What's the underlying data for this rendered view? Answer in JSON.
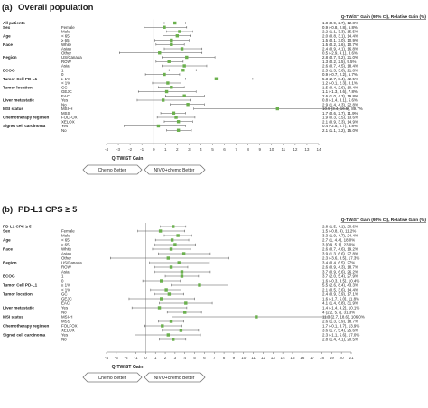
{
  "chart_data": [
    {
      "type": "scatter",
      "panel_label": "(a)",
      "title": "Overall population",
      "col_header": "Q-TWiST Gain (95% CI), Relative Gain (%)",
      "xlabel": "Q-TWiST Gain",
      "xlim": [
        -4,
        14
      ],
      "xticks": [
        -4,
        -3,
        -2,
        -1,
        0,
        1,
        2,
        3,
        4,
        5,
        6,
        7,
        8,
        9,
        10,
        11,
        12,
        13,
        14
      ],
      "button_left": "Chemo Better",
      "button_right": "NIVO+chemo Better",
      "rows": [
        {
          "group": "All patients",
          "sub": "-",
          "est": 1.8,
          "lo": 0.9,
          "hi": 2.7,
          "text": "1.8 (0.9, 2.7), 12.8%"
        },
        {
          "group": "Sex",
          "sub": "Female",
          "est": 0.9,
          "lo": -0.8,
          "hi": 2.8,
          "text": "0.9 (-0.8, 2.8), 6.8%"
        },
        {
          "group": "",
          "sub": "Male",
          "est": 2.2,
          "lo": 1.1,
          "hi": 3.3,
          "text": "2.2 (1.1, 3.3), 15.5%"
        },
        {
          "group": "Age",
          "sub": "< 65",
          "est": 2.0,
          "lo": 0.8,
          "hi": 3.1,
          "text": "2.0 (0.8, 3.1), 14.4%"
        },
        {
          "group": "",
          "sub": "≥ 65",
          "est": 1.5,
          "lo": 0.1,
          "hi": 3.0,
          "text": "1.5 (0.1, 3.0), 10.9%"
        },
        {
          "group": "Race",
          "sub": "White",
          "est": 1.5,
          "lo": 0.2,
          "hi": 2.6,
          "text": "1.5 (0.2, 2.6), 10.7%"
        },
        {
          "group": "",
          "sub": "Asian",
          "est": 2.4,
          "lo": 0.9,
          "hi": 4.1,
          "text": "2.4 (0.9, 4.1), 16.8%"
        },
        {
          "group": "",
          "sub": "Other",
          "est": 0.5,
          "lo": -2.9,
          "hi": 4.1,
          "text": "0.5 (-2.9, 4.1), 3.6%"
        },
        {
          "group": "Region",
          "sub": "US/Canada",
          "est": 2.8,
          "lo": 0.7,
          "hi": 5.2,
          "text": "2.8 (0.7, 5.2), 21.0%"
        },
        {
          "group": "",
          "sub": "ROW",
          "est": 1.3,
          "lo": 0.2,
          "hi": 2.5,
          "text": "1.3 (0.2, 2.5), 9.5%"
        },
        {
          "group": "",
          "sub": "Asia",
          "est": 2.6,
          "lo": 0.7,
          "hi": 4.5,
          "text": "2.6 (0.7, 4.5), 18.4%"
        },
        {
          "group": "ECOG",
          "sub": "1",
          "est": 2.5,
          "lo": 1.3,
          "hi": 3.6,
          "text": "2.5 (1.3, 3.6), 21.8%"
        },
        {
          "group": "",
          "sub": "0",
          "est": 0.9,
          "lo": -0.7,
          "hi": 2.2,
          "text": "0.9 (-0.7, 2.2), 5.7%"
        },
        {
          "group": "Tumor Cell PD-L1",
          "sub": "≥ 1%",
          "est": 5.3,
          "lo": 2.7,
          "hi": 8.4,
          "text": "5.3 (2.7, 8.4), 42.5%"
        },
        {
          "group": "",
          "sub": "< 1%",
          "est": 1.2,
          "lo": -0.1,
          "hi": 2.3,
          "text": "1.2 (-0.1, 2.3), 8.1%"
        },
        {
          "group": "Tumor location",
          "sub": "GC",
          "est": 1.5,
          "lo": 0.4,
          "hi": 2.6,
          "text": "1.5 (0.4, 2.6), 10.4%"
        },
        {
          "group": "",
          "sub": "GEJC",
          "est": 1.1,
          "lo": -1.3,
          "hi": 3.6,
          "text": "1.1 (-1.3, 3.6), 7.8%"
        },
        {
          "group": "",
          "sub": "EAC",
          "est": 2.6,
          "lo": 1.0,
          "hi": 4.3,
          "text": "2.6 (1.0, 4.3), 19.8%"
        },
        {
          "group": "Liver metastatic",
          "sub": "Yes",
          "est": 0.8,
          "lo": -1.4,
          "hi": 3.1,
          "text": "0.8 (-1.4, 3.1), 5.6%"
        },
        {
          "group": "",
          "sub": "No",
          "est": 2.9,
          "lo": 1.4,
          "hi": 4.3,
          "text": "2.9 (1.4, 4.3), 22.8%"
        },
        {
          "group": "MSI status",
          "sub": "MSI-H",
          "est": 10.5,
          "lo": 3.4,
          "hi": 16.5,
          "text": "10.5 (3.4, 16.5), 89.7%"
        },
        {
          "group": "",
          "sub": "MSS",
          "est": 1.7,
          "lo": 0.6,
          "hi": 2.7,
          "text": "1.7 (0.6, 2.7), 11.9%"
        },
        {
          "group": "Chemotherapy regimen",
          "sub": "FOLFOX",
          "est": 1.9,
          "lo": 0.3,
          "hi": 3.5,
          "text": "1.9 (0.3, 3.5), 13.6%"
        },
        {
          "group": "",
          "sub": "XELOX",
          "est": 2.1,
          "lo": 0.9,
          "hi": 3.3,
          "text": "2.1 (0.9, 3.3), 14.9%"
        },
        {
          "group": "Signet cell carcinoma",
          "sub": "Yes",
          "est": 0.4,
          "lo": -2.5,
          "hi": 2.7,
          "text": "0.4 (-2.5, 2.7), 3.8%"
        },
        {
          "group": "",
          "sub": "No",
          "est": 2.1,
          "lo": 1.1,
          "hi": 3.2,
          "text": "2.1 (1.1, 3.2), 15.0%"
        }
      ]
    },
    {
      "type": "scatter",
      "panel_label": "(b)",
      "title": "PD-L1 CPS ≥ 5",
      "col_header": "Q-TWiST Gain (95% CI), Relative Gain (%)",
      "xlabel": "Q-TWiST Gain",
      "xlim": [
        -4,
        21
      ],
      "xticks": [
        -4,
        -3,
        -2,
        -1,
        0,
        1,
        2,
        3,
        4,
        5,
        6,
        7,
        8,
        9,
        10,
        11,
        12,
        13,
        14,
        15,
        16,
        17,
        18,
        19,
        20,
        21
      ],
      "button_left": "Chemo Better",
      "button_right": "NIVO+chemo Better",
      "rows": [
        {
          "group": "PD-L1 CPS ≥ 5",
          "sub": "-",
          "est": 2.8,
          "lo": 1.5,
          "hi": 4.1,
          "text": "2.8 (1.5, 4.1), 20.6%"
        },
        {
          "group": "Sex",
          "sub": "Female",
          "est": 1.5,
          "lo": -0.8,
          "hi": 4.0,
          "text": "1.5 (-0.8, 4), 11.2%"
        },
        {
          "group": "",
          "sub": "Male",
          "est": 3.3,
          "lo": 1.9,
          "hi": 4.7,
          "text": "3.3 (1.9, 4.7), 24.4%"
        },
        {
          "group": "Age",
          "sub": "< 65",
          "est": 2.7,
          "lo": 1.0,
          "hi": 4.4,
          "text": "2.7 (1, 4.4), 18.0%"
        },
        {
          "group": "",
          "sub": "≥ 65",
          "est": 3.0,
          "lo": 0.9,
          "hi": 5.1,
          "text": "3 (0.9, 5.1), 23.0%"
        },
        {
          "group": "Race",
          "sub": "White",
          "est": 2.6,
          "lo": 0.7,
          "hi": 4.6,
          "text": "2.6 (0.7, 4.6), 19.2%"
        },
        {
          "group": "",
          "sub": "Asian",
          "est": 3.9,
          "lo": 1.3,
          "hi": 6.6,
          "text": "3.9 (1.3, 6.6), 27.8%"
        },
        {
          "group": "",
          "sub": "Other",
          "est": 2.3,
          "lo": -3.6,
          "hi": 8.5,
          "text": "2.3 (-3.6, 8.5), 17.3%"
        },
        {
          "group": "Region",
          "sub": "US/Canada",
          "est": 3.4,
          "lo": 0.4,
          "hi": 6.5,
          "text": "3.4 (0.4, 6.5), 27%"
        },
        {
          "group": "",
          "sub": "ROW",
          "est": 2.6,
          "lo": 0.9,
          "hi": 4.3,
          "text": "2.6 (0.9, 4.3), 18.7%"
        },
        {
          "group": "",
          "sub": "Asia",
          "est": 3.7,
          "lo": 0.9,
          "hi": 6.6,
          "text": "3.7 (0.9, 6.6), 26.2%"
        },
        {
          "group": "ECOG",
          "sub": "1",
          "est": 3.7,
          "lo": 2.0,
          "hi": 5.4,
          "text": "3.7 (2.0, 5.4), 27.9%"
        },
        {
          "group": "",
          "sub": "0",
          "est": 1.6,
          "lo": -0.3,
          "hi": 3.5,
          "text": "1.6 (-0.3, 3.5), 10.4%"
        },
        {
          "group": "Tumor Cell PD-L1",
          "sub": "≥ 1%",
          "est": 5.5,
          "lo": 2.6,
          "hi": 8.4,
          "text": "5.5 (2.6, 8.4), 43.3%"
        },
        {
          "group": "",
          "sub": "< 1%",
          "est": 2.1,
          "lo": 0.5,
          "hi": 3.6,
          "text": "2.1 (0.5, 3.6), 14.4%"
        },
        {
          "group": "Tumor location",
          "sub": "GC",
          "est": 2.4,
          "lo": 0.9,
          "hi": 3.9,
          "text": "2.4 (0.9, 3.9), 17.1%"
        },
        {
          "group": "",
          "sub": "GEJC",
          "est": 1.6,
          "lo": -1.7,
          "hi": 5.0,
          "text": "1.6 (-1.7, 5.0), 11.8%"
        },
        {
          "group": "",
          "sub": "EAC",
          "est": 4.1,
          "lo": 1.4,
          "hi": 6.8,
          "text": "4.1 (1.4, 6.8), 31.9%"
        },
        {
          "group": "Liver metastatic",
          "sub": "Yes",
          "est": 1.4,
          "lo": -1.4,
          "hi": 4.2,
          "text": "1.4 (-1.4, 4.2), 10.1%"
        },
        {
          "group": "",
          "sub": "No",
          "est": 4.0,
          "lo": 2.2,
          "hi": 5.7,
          "text": "4 (2.2, 5.7), 31.3%"
        },
        {
          "group": "MSI status",
          "sub": "MSI-H",
          "est": 11.3,
          "lo": 2.7,
          "hi": 18.6,
          "text": "11.3 (2.7, 18.6), 106.0%"
        },
        {
          "group": "",
          "sub": "MSS",
          "est": 2.6,
          "lo": 1.3,
          "hi": 3.9,
          "text": "2.6 (1.3, 3.9), 18.7%"
        },
        {
          "group": "Chemotherapy regimen",
          "sub": "FOLFOX",
          "est": 1.7,
          "lo": -0.1,
          "hi": 3.7,
          "text": "1.7 (-0.1, 3.7), 13.9%"
        },
        {
          "group": "",
          "sub": "XELOX",
          "est": 3.6,
          "lo": 1.7,
          "hi": 5.4,
          "text": "3.6 (1.7, 5.4), 25.6%"
        },
        {
          "group": "Signet cell carcinoma",
          "sub": "Yes",
          "est": 2.3,
          "lo": -1.1,
          "hi": 5.6,
          "text": "2.3 (-1.1, 5.6), 17.0%"
        },
        {
          "group": "",
          "sub": "No",
          "est": 2.8,
          "lo": 1.4,
          "hi": 4.1,
          "text": "2.8 (1.4, 4.1), 20.5%"
        }
      ]
    }
  ],
  "colors": {
    "marker": "#6ab04c",
    "ci_line": "#555555",
    "zero_line": "#9a9a9a",
    "text": "#222222"
  }
}
